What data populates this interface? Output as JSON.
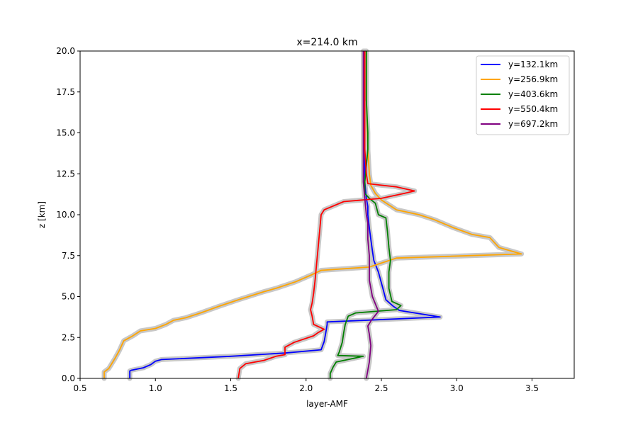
{
  "chart_data": {
    "type": "line",
    "title": "x=214.0 km",
    "xlabel": "layer-AMF",
    "ylabel": "z [km]",
    "xlim": [
      0.5,
      3.78
    ],
    "ylim": [
      0,
      20
    ],
    "xticks": [
      0.5,
      1.0,
      1.5,
      2.0,
      2.5,
      3.0,
      3.5
    ],
    "yticks": [
      0.0,
      2.5,
      5.0,
      7.5,
      10.0,
      12.5,
      15.0,
      17.5,
      20.0
    ],
    "grid": false,
    "legend_position": "top-right",
    "uncertainty_band_color": "#c8c8c8",
    "series": [
      {
        "name": "y=132.1km",
        "color": "#0000ff",
        "points": [
          [
            0.83,
            0.0
          ],
          [
            0.83,
            0.45
          ],
          [
            0.84,
            0.5
          ],
          [
            0.92,
            0.65
          ],
          [
            0.97,
            0.85
          ],
          [
            1.0,
            1.05
          ],
          [
            1.04,
            1.15
          ],
          [
            1.5,
            1.35
          ],
          [
            1.86,
            1.55
          ],
          [
            2.1,
            1.75
          ],
          [
            2.12,
            2.25
          ],
          [
            2.13,
            2.75
          ],
          [
            2.14,
            3.3
          ],
          [
            2.14,
            3.45
          ],
          [
            2.89,
            3.75
          ],
          [
            2.62,
            4.15
          ],
          [
            2.58,
            4.4
          ],
          [
            2.53,
            4.8
          ],
          [
            2.51,
            5.5
          ],
          [
            2.48,
            6.5
          ],
          [
            2.45,
            7.2
          ],
          [
            2.44,
            7.8
          ],
          [
            2.43,
            8.5
          ],
          [
            2.42,
            9.2
          ],
          [
            2.41,
            10.0
          ],
          [
            2.41,
            10.5
          ],
          [
            2.4,
            11.0
          ],
          [
            2.39,
            12.0
          ],
          [
            2.39,
            13.0
          ],
          [
            2.39,
            15.0
          ],
          [
            2.39,
            17.5
          ],
          [
            2.39,
            20.0
          ]
        ]
      },
      {
        "name": "y=256.9km",
        "color": "#ffa500",
        "points": [
          [
            0.66,
            0.0
          ],
          [
            0.66,
            0.4
          ],
          [
            0.69,
            0.6
          ],
          [
            0.73,
            1.2
          ],
          [
            0.76,
            1.7
          ],
          [
            0.79,
            2.3
          ],
          [
            0.85,
            2.6
          ],
          [
            0.9,
            2.9
          ],
          [
            1.0,
            3.05
          ],
          [
            1.07,
            3.3
          ],
          [
            1.12,
            3.55
          ],
          [
            1.2,
            3.7
          ],
          [
            1.3,
            4.0
          ],
          [
            1.42,
            4.4
          ],
          [
            1.55,
            4.8
          ],
          [
            1.72,
            5.3
          ],
          [
            1.8,
            5.5
          ],
          [
            1.93,
            5.9
          ],
          [
            2.03,
            6.3
          ],
          [
            2.1,
            6.6
          ],
          [
            2.42,
            6.8
          ],
          [
            2.6,
            7.35
          ],
          [
            3.43,
            7.6
          ],
          [
            3.28,
            8.0
          ],
          [
            3.22,
            8.6
          ],
          [
            3.1,
            8.8
          ],
          [
            2.98,
            9.2
          ],
          [
            2.85,
            9.7
          ],
          [
            2.75,
            10.0
          ],
          [
            2.6,
            10.3
          ],
          [
            2.55,
            10.6
          ],
          [
            2.5,
            10.9
          ],
          [
            2.46,
            11.3
          ],
          [
            2.43,
            11.8
          ],
          [
            2.42,
            12.5
          ],
          [
            2.41,
            14.0
          ],
          [
            2.4,
            17.0
          ],
          [
            2.4,
            20.0
          ]
        ]
      },
      {
        "name": "y=403.6km",
        "color": "#008000",
        "points": [
          [
            2.16,
            0.0
          ],
          [
            2.16,
            0.3
          ],
          [
            2.18,
            0.7
          ],
          [
            2.2,
            1.0
          ],
          [
            2.38,
            1.35
          ],
          [
            2.21,
            1.4
          ],
          [
            2.22,
            1.6
          ],
          [
            2.24,
            2.2
          ],
          [
            2.25,
            2.8
          ],
          [
            2.26,
            3.3
          ],
          [
            2.28,
            3.8
          ],
          [
            2.33,
            4.0
          ],
          [
            2.6,
            4.2
          ],
          [
            2.63,
            4.45
          ],
          [
            2.57,
            4.7
          ],
          [
            2.55,
            5.5
          ],
          [
            2.55,
            6.5
          ],
          [
            2.56,
            7.2
          ],
          [
            2.55,
            8.0
          ],
          [
            2.54,
            9.0
          ],
          [
            2.53,
            9.8
          ],
          [
            2.48,
            10.0
          ],
          [
            2.46,
            10.7
          ],
          [
            2.42,
            11.0
          ],
          [
            2.39,
            11.3
          ],
          [
            2.39,
            12.0
          ],
          [
            2.4,
            13.0
          ],
          [
            2.41,
            14.0
          ],
          [
            2.41,
            15.0
          ],
          [
            2.4,
            17.0
          ],
          [
            2.4,
            20.0
          ]
        ]
      },
      {
        "name": "y=550.4km",
        "color": "#ff0000",
        "points": [
          [
            1.55,
            0.0
          ],
          [
            1.56,
            0.6
          ],
          [
            1.6,
            0.9
          ],
          [
            1.72,
            1.1
          ],
          [
            1.8,
            1.35
          ],
          [
            1.86,
            1.45
          ],
          [
            1.86,
            1.9
          ],
          [
            1.92,
            2.2
          ],
          [
            2.05,
            2.6
          ],
          [
            2.08,
            2.8
          ],
          [
            2.12,
            3.0
          ],
          [
            2.05,
            3.3
          ],
          [
            2.04,
            3.8
          ],
          [
            2.03,
            4.2
          ],
          [
            2.04,
            4.6
          ],
          [
            2.05,
            5.2
          ],
          [
            2.06,
            6.0
          ],
          [
            2.07,
            7.0
          ],
          [
            2.08,
            8.0
          ],
          [
            2.09,
            9.0
          ],
          [
            2.1,
            10.0
          ],
          [
            2.12,
            10.3
          ],
          [
            2.25,
            10.8
          ],
          [
            2.5,
            11.0
          ],
          [
            2.65,
            11.3
          ],
          [
            2.72,
            11.45
          ],
          [
            2.6,
            11.7
          ],
          [
            2.5,
            11.8
          ],
          [
            2.41,
            11.9
          ],
          [
            2.4,
            12.5
          ],
          [
            2.39,
            14.0
          ],
          [
            2.39,
            17.0
          ],
          [
            2.39,
            20.0
          ]
        ]
      },
      {
        "name": "y=697.2km",
        "color": "#800080",
        "points": [
          [
            2.4,
            0.0
          ],
          [
            2.41,
            0.5
          ],
          [
            2.42,
            1.0
          ],
          [
            2.43,
            2.0
          ],
          [
            2.42,
            2.7
          ],
          [
            2.41,
            3.2
          ],
          [
            2.43,
            3.5
          ],
          [
            2.48,
            4.1
          ],
          [
            2.44,
            5.0
          ],
          [
            2.42,
            6.0
          ],
          [
            2.42,
            7.5
          ],
          [
            2.41,
            8.5
          ],
          [
            2.41,
            9.5
          ],
          [
            2.4,
            10.0
          ],
          [
            2.39,
            11.0
          ],
          [
            2.38,
            12.0
          ],
          [
            2.38,
            13.0
          ],
          [
            2.38,
            15.0
          ],
          [
            2.38,
            17.0
          ],
          [
            2.38,
            20.0
          ]
        ]
      }
    ]
  }
}
